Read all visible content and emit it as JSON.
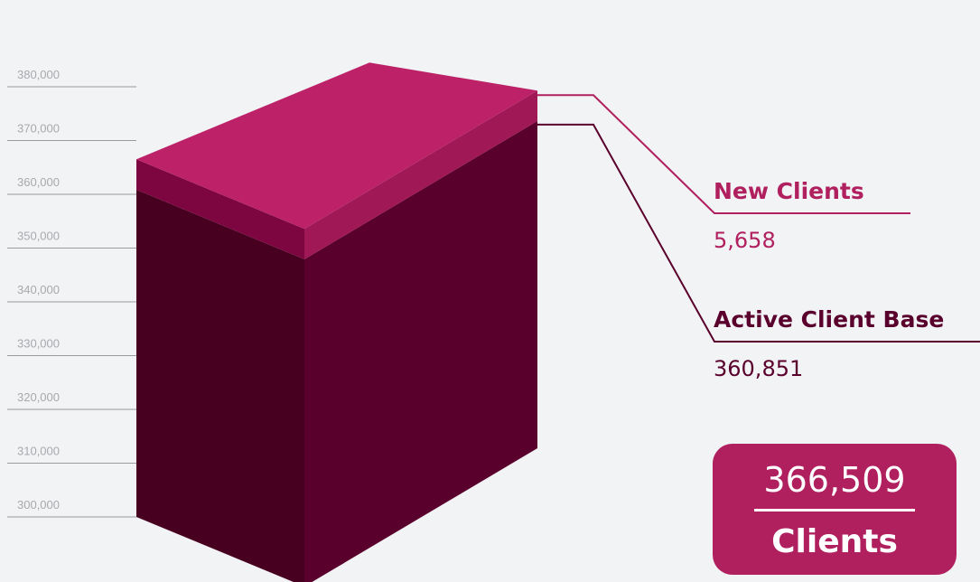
{
  "chart_data": {
    "type": "bar",
    "style": "3d-stacked-isometric",
    "ylim": [
      300000,
      380000
    ],
    "y_ticks": [
      "300,000",
      "310,000",
      "320,000",
      "330,000",
      "340,000",
      "350,000",
      "360,000",
      "370,000",
      "380,000"
    ],
    "y_tick_values": [
      300000,
      310000,
      320000,
      330000,
      340000,
      350000,
      360000,
      370000,
      380000
    ],
    "series": [
      {
        "name": "Active Client Base",
        "value": 360851,
        "value_label": "360,851"
      },
      {
        "name": "New Clients",
        "value": 5658,
        "value_label": "5,658"
      }
    ],
    "total": {
      "value": 366509,
      "value_label": "366,509",
      "unit": "Clients"
    }
  },
  "colors": {
    "background": "#f2f3f5",
    "active_left_face": "#480021",
    "active_right_face": "#5a002c",
    "new_left_face": "#7d0641",
    "new_right_face": "#a11856",
    "new_top_face": "#bd2269",
    "new_label": "#b01f5e",
    "active_label": "#5a002c",
    "total_box": "#b01f5e",
    "axis_text": "#a9a9ad",
    "axis_line": "#9a9aa0"
  }
}
